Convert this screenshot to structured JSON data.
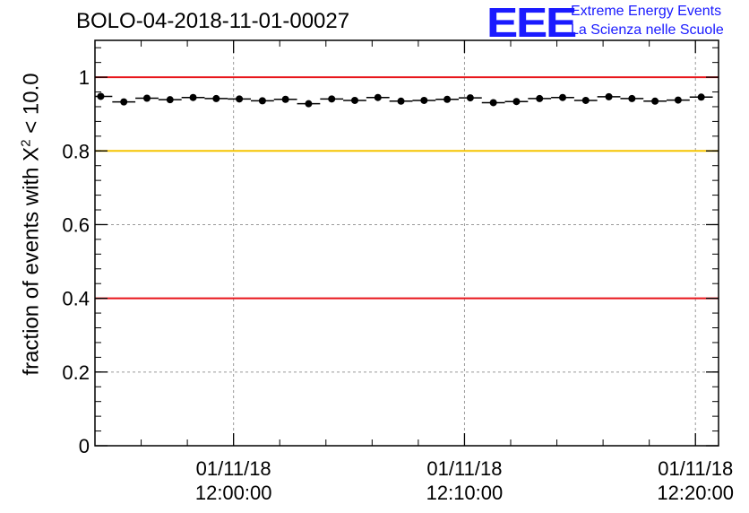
{
  "header": {
    "run_title": "BOLO-04-2018-11-01-00027"
  },
  "logo": {
    "mark": "EEE",
    "line1": "Extreme Energy Events",
    "line2": "La Scienza nelle Scuole",
    "color": "#1a1aff"
  },
  "axis": {
    "ylabel_prefix": "fraction of events with ",
    "ylabel_symbol": "X",
    "ylabel_exponent": "2",
    "ylabel_suffix": " < 10.0"
  },
  "chart_data": {
    "type": "scatter",
    "title": "BOLO-04-2018-11-01-00027",
    "ylabel": "fraction of events with X² < 10.0",
    "xlabel": "",
    "ylim": [
      0,
      1.1
    ],
    "xlim_minutes": [
      -6,
      21
    ],
    "yticks": [
      {
        "value": 0,
        "label": "0"
      },
      {
        "value": 0.2,
        "label": "0.2"
      },
      {
        "value": 0.4,
        "label": "0.4"
      },
      {
        "value": 0.6,
        "label": "0.6"
      },
      {
        "value": 0.8,
        "label": "0.8"
      },
      {
        "value": 1,
        "label": "1"
      }
    ],
    "xticks": [
      {
        "minute": 0,
        "date": "01/11/18",
        "time": "12:00:00"
      },
      {
        "minute": 10,
        "date": "01/11/18",
        "time": "12:10:00"
      },
      {
        "minute": 20,
        "date": "01/11/18",
        "time": "12:20:00"
      }
    ],
    "grid": true,
    "reference_lines": [
      {
        "value": 1.0,
        "color": "#e8141a"
      },
      {
        "value": 0.8,
        "color": "#f5c400"
      },
      {
        "value": 0.4,
        "color": "#e8141a"
      }
    ],
    "bin_width_minutes": 1.0,
    "x_minutes": [
      -5.75,
      -4.75,
      -3.75,
      -2.75,
      -1.75,
      -0.75,
      0.25,
      1.25,
      2.25,
      3.25,
      4.25,
      5.25,
      6.25,
      7.25,
      8.25,
      9.25,
      10.25,
      11.25,
      12.25,
      13.25,
      14.25,
      15.25,
      16.25,
      17.25,
      18.25,
      19.25,
      20.25
    ],
    "values": [
      0.948,
      0.933,
      0.943,
      0.939,
      0.945,
      0.942,
      0.941,
      0.936,
      0.94,
      0.928,
      0.941,
      0.937,
      0.945,
      0.935,
      0.937,
      0.94,
      0.944,
      0.931,
      0.934,
      0.942,
      0.945,
      0.937,
      0.947,
      0.942,
      0.935,
      0.938,
      0.946
    ]
  }
}
